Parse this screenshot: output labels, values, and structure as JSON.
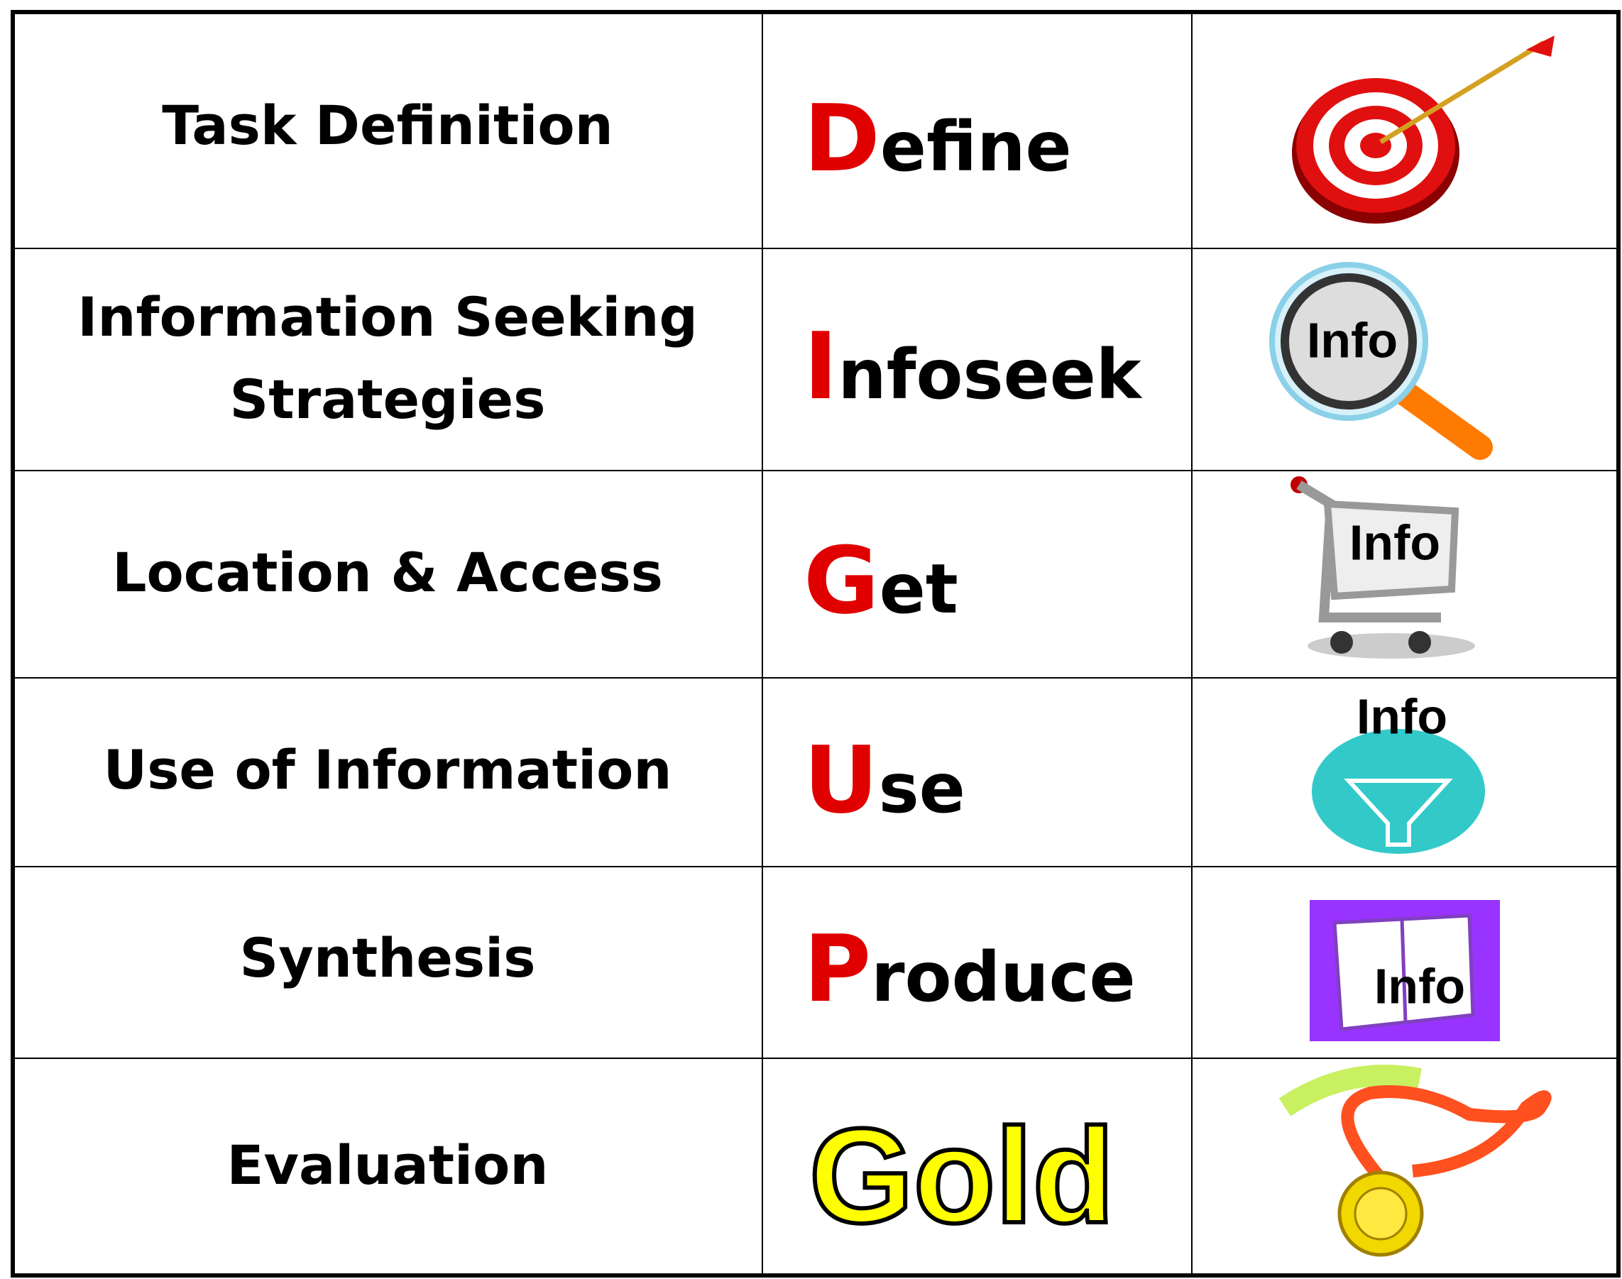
{
  "table": {
    "rows": [
      {
        "stage": [
          "Task Definition"
        ],
        "initial": "D",
        "rest": "efine"
      },
      {
        "stage": [
          "Information Seeking",
          "Strategies"
        ],
        "initial": "I",
        "rest": "nfoseek",
        "icon_label": "Info"
      },
      {
        "stage": [
          "Location & Access"
        ],
        "initial": "G",
        "rest": "et",
        "icon_label": "Info"
      },
      {
        "stage": [
          "Use of Information"
        ],
        "initial": "U",
        "rest": "se",
        "icon_label": "Info"
      },
      {
        "stage": [
          "Synthesis"
        ],
        "initial": "P",
        "rest": "roduce",
        "icon_label": "Info"
      },
      {
        "stage": [
          "Evaluation"
        ],
        "word": "Gold"
      }
    ]
  }
}
